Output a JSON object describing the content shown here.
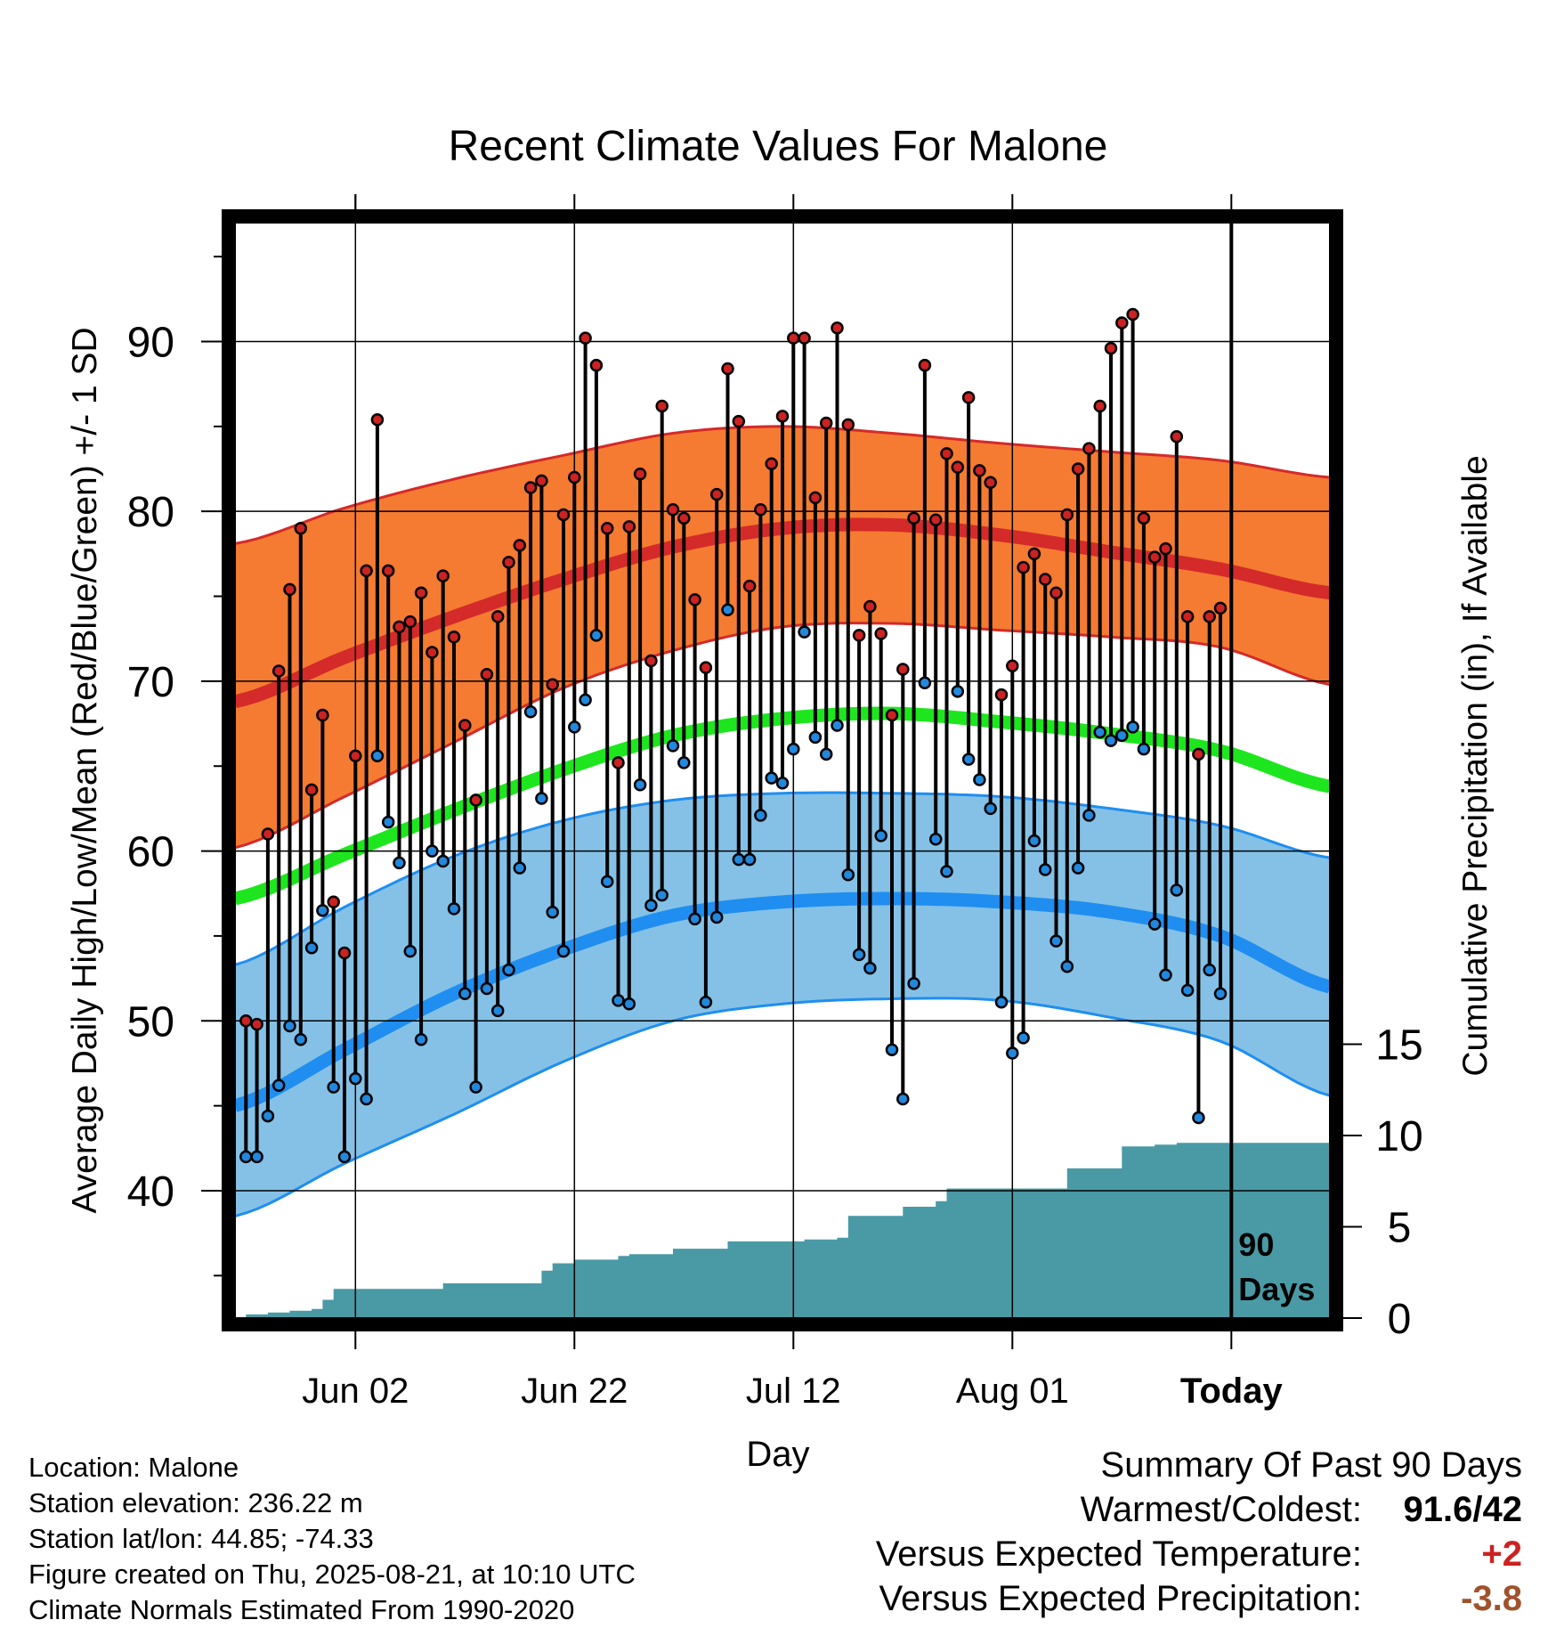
{
  "chart_data": {
    "type": "line",
    "title": "Recent Climate Values For Malone",
    "xlabel": "Day",
    "ylabel": "Average Daily High/Low/Mean (Red/Blue/Green) +/- 1 SD",
    "y2label": "Cumulative Precipitation (in), If Available",
    "x_tick_labels": [
      "Jun 02",
      "Jun 22",
      "Jul 12",
      "Aug 01",
      "Today"
    ],
    "x_tick_days": [
      11,
      31,
      51,
      71,
      91
    ],
    "x_range_days": [
      0,
      100
    ],
    "ylim": [
      32.5,
      97
    ],
    "y_ticks": [
      40,
      50,
      60,
      70,
      80,
      90
    ],
    "y2lim": [
      0,
      60
    ],
    "y2_ticks": [
      0,
      5,
      10,
      15
    ],
    "today_marker_label": [
      "90",
      "Days"
    ],
    "colors": {
      "high_band": "#f47b31",
      "high_line": "#d42a2a",
      "low_band": "#85c1e6",
      "low_line": "#1f8ef0",
      "mean_line": "#1ee61e",
      "precip": "#4a9aa5",
      "high_dot": "#cc2222",
      "low_dot": "#2288dd"
    },
    "normals": {
      "days": [
        0,
        10,
        20,
        30,
        40,
        50,
        60,
        70,
        80,
        90,
        100
      ],
      "high_mean": [
        68.8,
        71.4,
        73.8,
        76.0,
        77.9,
        79.0,
        79.2,
        78.6,
        77.6,
        76.6,
        75.2
      ],
      "high_upper": [
        78.1,
        80.2,
        81.9,
        83.3,
        84.6,
        85.0,
        84.6,
        84.0,
        83.5,
        83.0,
        82.0
      ],
      "high_lower": [
        60.2,
        63.2,
        66.4,
        69.6,
        71.8,
        73.2,
        73.4,
        73.0,
        72.6,
        72.0,
        69.8
      ],
      "low_mean": [
        45.0,
        48.3,
        51.6,
        54.2,
        56.2,
        57.0,
        57.2,
        57.0,
        56.4,
        55.0,
        52.0
      ],
      "low_upper": [
        53.3,
        56.7,
        59.7,
        61.8,
        63.0,
        63.4,
        63.4,
        63.2,
        62.5,
        61.5,
        59.6
      ],
      "low_lower": [
        38.5,
        41.6,
        44.5,
        47.6,
        50.0,
        51.0,
        51.3,
        51.2,
        50.2,
        48.8,
        45.6
      ],
      "mean_mean": [
        57.2,
        59.8,
        62.4,
        64.8,
        66.8,
        67.8,
        68.1,
        67.6,
        66.9,
        65.9,
        63.8
      ]
    },
    "observations": {
      "highs": [
        50.0,
        49.8,
        61.0,
        70.6,
        75.4,
        79.0,
        63.6,
        68.0,
        57.0,
        54.0,
        65.6,
        76.5,
        85.4,
        76.5,
        73.2,
        73.5,
        75.2,
        71.7,
        76.2,
        72.6,
        67.4,
        63.0,
        70.4,
        73.8,
        77.0,
        78.0,
        81.4,
        81.8,
        69.8,
        79.8,
        82.0,
        90.2,
        88.6,
        79.0,
        65.2,
        79.1,
        82.2,
        71.2,
        86.2,
        80.1,
        79.6,
        74.8,
        70.8,
        81.0,
        88.4,
        85.3,
        75.6,
        80.1,
        82.8,
        85.6,
        90.2,
        90.2,
        80.8,
        85.2,
        90.8,
        85.1,
        72.7,
        74.4,
        72.8,
        68.0,
        70.7,
        79.6,
        88.6,
        79.5,
        83.4,
        82.6,
        86.7,
        82.4,
        81.7,
        69.2,
        70.9,
        76.7,
        77.5,
        76.0,
        75.2,
        79.8,
        82.5,
        83.7,
        86.2,
        89.6,
        91.1,
        91.6,
        79.6,
        77.3,
        77.8,
        84.4,
        73.8,
        65.7,
        73.8,
        74.3
      ],
      "lows": [
        42.0,
        42.0,
        44.4,
        46.2,
        49.7,
        48.9,
        54.3,
        56.5,
        46.1,
        42.0,
        46.6,
        45.4,
        65.6,
        61.7,
        59.3,
        54.1,
        48.9,
        60.0,
        59.4,
        56.6,
        51.6,
        46.1,
        51.9,
        50.6,
        53.0,
        59.0,
        68.2,
        63.1,
        56.4,
        54.1,
        67.3,
        68.9,
        72.7,
        58.2,
        51.2,
        51.0,
        63.9,
        56.8,
        57.4,
        66.2,
        65.2,
        56.0,
        51.1,
        56.1,
        74.2,
        59.5,
        59.5,
        62.1,
        64.3,
        64.0,
        66.0,
        72.9,
        66.7,
        65.7,
        67.4,
        58.6,
        53.9,
        53.1,
        60.9,
        48.3,
        45.4,
        52.2,
        69.9,
        60.7,
        58.8,
        69.4,
        65.4,
        64.2,
        62.5,
        51.1,
        48.1,
        49.0,
        60.6,
        58.9,
        54.7,
        53.2,
        59.0,
        62.1,
        67.0,
        66.5,
        66.8,
        67.3,
        66.0,
        55.7,
        52.7,
        57.7,
        51.8,
        44.3,
        53.0,
        51.6
      ]
    },
    "precipitation_cumulative": {
      "days": [
        0,
        1,
        3,
        5,
        7,
        8,
        9,
        11,
        13,
        15,
        17,
        19,
        21,
        24,
        27,
        28,
        29,
        31,
        33,
        35,
        36,
        37,
        40,
        41,
        44,
        45,
        48,
        52,
        53,
        55,
        56,
        58,
        61,
        63,
        64,
        65,
        66,
        68,
        70,
        72,
        75,
        76,
        78,
        80,
        81,
        82,
        84,
        86,
        88,
        90,
        91,
        93,
        95,
        97,
        100
      ],
      "values": [
        0,
        0.2,
        0.3,
        0.4,
        0.5,
        1.0,
        1.6,
        1.6,
        1.6,
        1.6,
        1.6,
        1.9,
        1.9,
        1.9,
        1.9,
        2.6,
        3.0,
        3.2,
        3.2,
        3.4,
        3.5,
        3.5,
        3.8,
        3.8,
        3.8,
        4.2,
        4.2,
        4.3,
        4.3,
        4.4,
        5.6,
        5.6,
        6.1,
        6.1,
        6.4,
        7.1,
        7.1,
        7.1,
        7.1,
        7.1,
        7.1,
        8.2,
        8.2,
        8.2,
        9.4,
        9.4,
        9.5,
        9.6,
        9.6,
        9.6,
        9.6,
        9.6,
        9.6,
        9.6,
        9.6
      ]
    }
  },
  "info": {
    "location": "Location: Malone",
    "elevation": "Station elevation: 236.22 m",
    "latlon": "Station lat/lon: 44.85; -74.33",
    "created": "Figure created on Thu, 2025-08-21, at 10:10 UTC",
    "normals_source": "Climate Normals Estimated From 1990-2020"
  },
  "summary": {
    "heading": "Summary Of Past 90 Days",
    "warm_cold_label": "Warmest/Coldest:",
    "warm_cold_value": "91.6/42",
    "temp_label": "Versus Expected Temperature:",
    "temp_value": "+2",
    "temp_color": "#cc2222",
    "precip_label": "Versus Expected Precipitation:",
    "precip_value": "-3.8",
    "precip_color": "#a0522d"
  }
}
